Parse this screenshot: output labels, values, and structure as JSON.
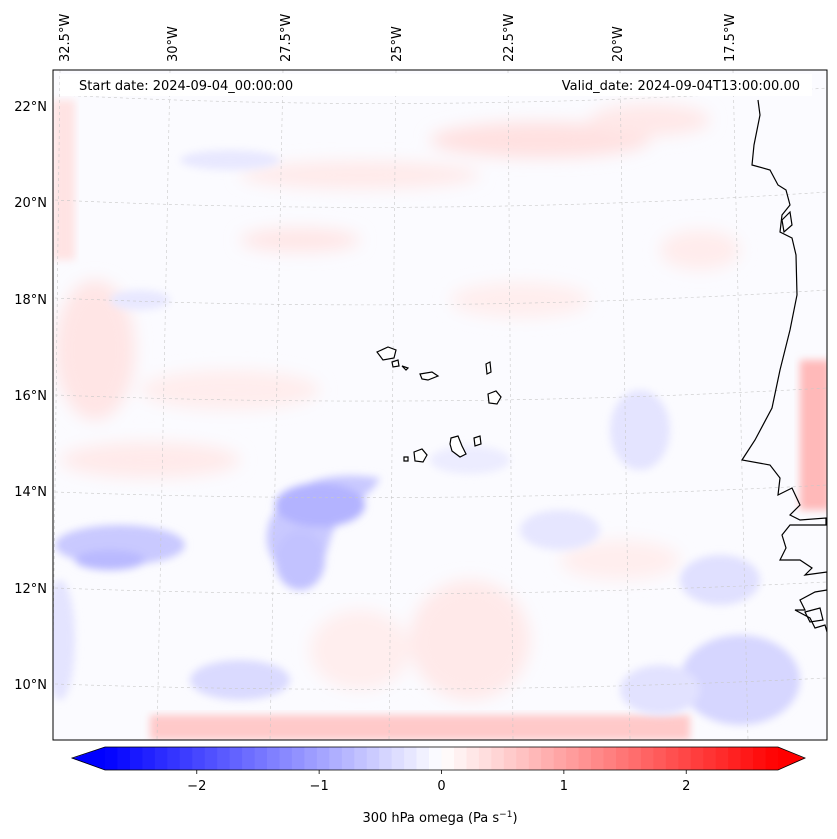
{
  "map": {
    "start_date": "Start date: 2024-09-04_00:00:00",
    "valid_date": "Valid_date: 2024-09-04T13:00:00.00",
    "lon_labels": [
      "32.5°W",
      "30°W",
      "27.5°W",
      "25°W",
      "22.5°W",
      "20°W",
      "17.5°W"
    ],
    "lat_labels": [
      "22°N",
      "20°N",
      "18°N",
      "16°N",
      "14°N",
      "12°N",
      "10°N"
    ],
    "variable": "300 hPa omega",
    "units": "Pa s⁻¹"
  },
  "colorbar": {
    "label": "300 hPa omega (Pa s",
    "label_sup": "−1",
    "label_close": ")",
    "ticks": [
      "−2",
      "−1",
      "0",
      "1",
      "2"
    ],
    "range": [
      -2.75,
      2.75
    ],
    "tick_values": [
      -2,
      -1,
      0,
      1,
      2
    ],
    "colormap": "bwr",
    "neg_color": "#0000ff",
    "mid_color": "#ffffff",
    "pos_color": "#ff0000"
  }
}
